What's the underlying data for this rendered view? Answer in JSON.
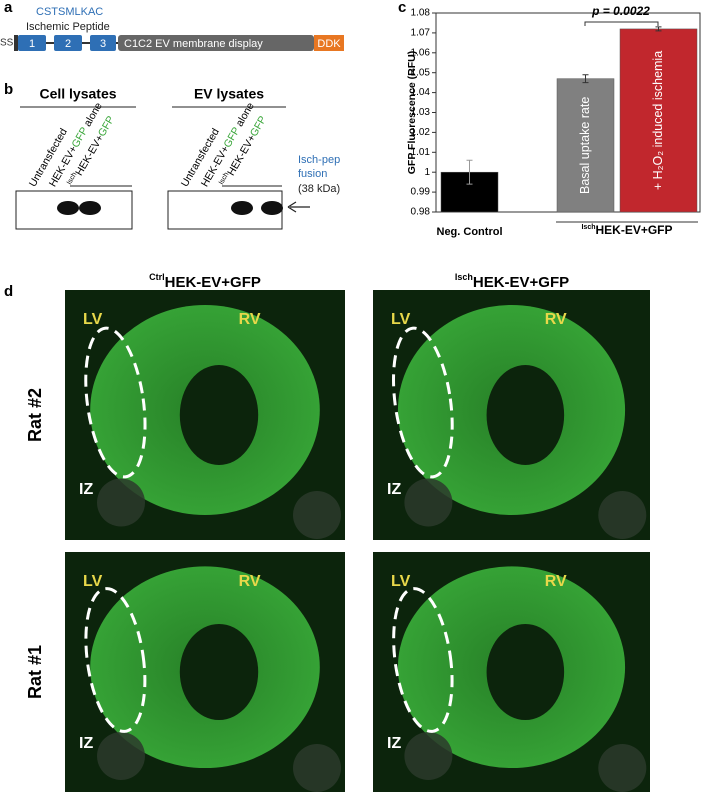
{
  "panel_a": {
    "label": "a",
    "peptide_sequence": "CSTSMLKAC",
    "peptide_name": "Ischemic Peptide",
    "signal": "SS",
    "repeats": [
      "1",
      "2",
      "3"
    ],
    "display": "C1C2 EV membrane display",
    "tag": "DDK"
  },
  "panel_b": {
    "label": "b",
    "groups": [
      {
        "title": "Cell lysates",
        "lanes": [
          [
            "Untransfected"
          ],
          [
            "HEK-EV+",
            "GFP",
            " alone"
          ],
          [
            "Isch",
            "HEK-EV+",
            "GFP"
          ]
        ]
      },
      {
        "title": "EV lysates",
        "lanes": [
          [
            "Untransfected"
          ],
          [
            "HEK-EV+",
            "GFP",
            " alone"
          ],
          [
            "Isch",
            "HEK-EV+",
            "GFP"
          ]
        ]
      }
    ],
    "annotation": [
      "Isch-pep",
      "fusion",
      "(38 kDa)"
    ]
  },
  "chart_data": {
    "type": "bar",
    "label": "c",
    "categories": [
      "Neg. Control",
      "Basal uptake rate",
      "+ H₂O₂ induced ischemia"
    ],
    "values": [
      1.0,
      1.047,
      1.072
    ],
    "errors": [
      0.006,
      0.002,
      0.001
    ],
    "colors": [
      "#000000",
      "#808080",
      "#c1272d"
    ],
    "group_label": [
      "Isch",
      "HEK-EV+GFP"
    ],
    "ylabel": "GFP Fluorescence (RFU)",
    "annotation": "p = 0.0022",
    "ylim": [
      0.98,
      1.08
    ],
    "yticks": [
      0.98,
      0.99,
      1,
      1.01,
      1.02,
      1.03,
      1.04,
      1.05,
      1.06,
      1.07,
      1.08
    ]
  },
  "panel_d": {
    "label": "d",
    "columns": [
      [
        "Ctrl",
        "HEK-EV+GFP"
      ],
      [
        "Isch",
        "HEK-EV+GFP"
      ]
    ],
    "rows": [
      "Rat #2",
      "Rat #1"
    ],
    "images": [
      {
        "lv": "LV",
        "rv": "RV",
        "iz": "IZ"
      },
      {
        "lv": "LV",
        "rv": "RV",
        "iz": "IZ"
      },
      {
        "lv": "LV",
        "rv": "RV",
        "iz": "IZ"
      },
      {
        "lv": "LV",
        "rv": "RV",
        "iz": "IZ"
      }
    ]
  }
}
